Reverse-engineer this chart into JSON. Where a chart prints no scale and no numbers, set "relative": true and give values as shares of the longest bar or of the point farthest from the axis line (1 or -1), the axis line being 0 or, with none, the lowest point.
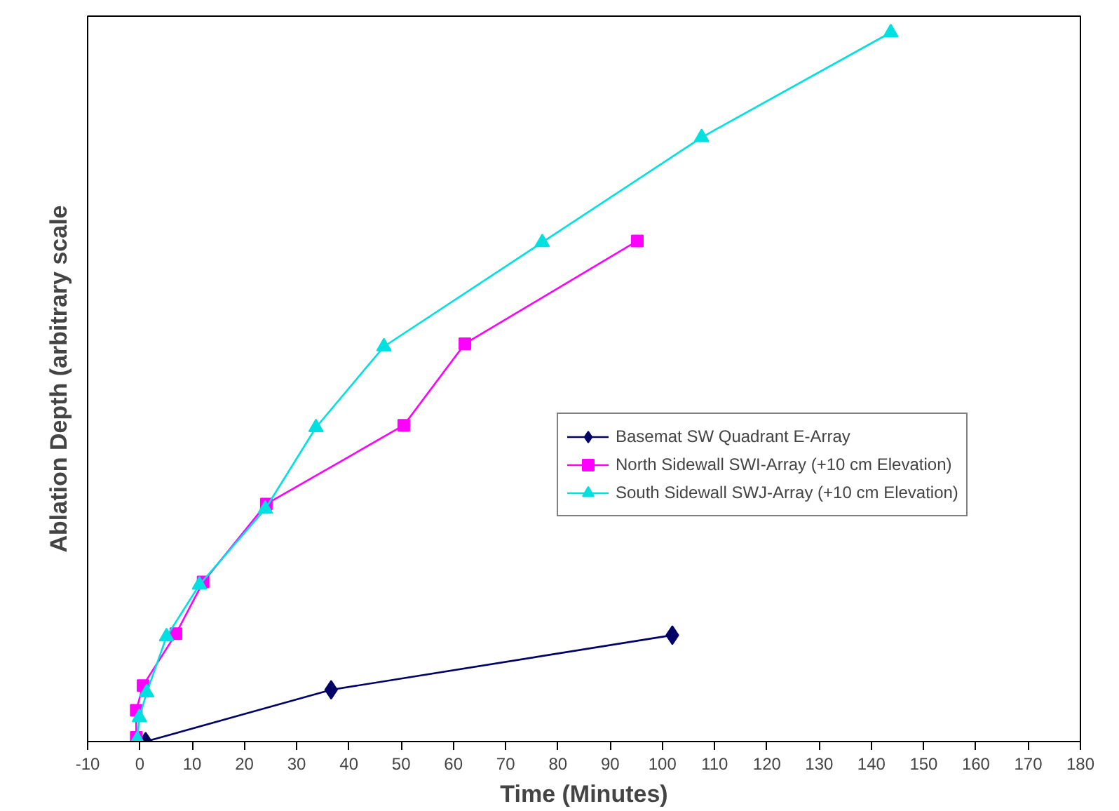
{
  "chart_data": {
    "type": "line",
    "relative": true,
    "xlabel": "Time (Minutes)",
    "ylabel": "Ablation Depth (arbitrary scale",
    "xlim": [
      -10,
      180
    ],
    "xticks": [
      -10,
      0,
      10,
      20,
      30,
      40,
      50,
      60,
      70,
      80,
      90,
      100,
      110,
      120,
      130,
      140,
      150,
      160,
      170,
      180
    ],
    "grid": false,
    "legend": "right",
    "series": [
      {
        "name": "Basemat SW Quadrant E-Array",
        "color": "#000066",
        "marker": "diamond",
        "x": [
          1.1,
          36.6,
          101.9
        ],
        "values": [
          0.0,
          0.073,
          0.15
        ]
      },
      {
        "name": "North Sidewall SWI-Array (+10 cm Elevation)",
        "color": "#ff00ff",
        "marker": "square",
        "x": [
          -0.7,
          -0.7,
          0.6,
          6.9,
          12.1,
          24.2,
          50.5,
          62.2,
          95.2
        ],
        "values": [
          0.006,
          0.044,
          0.079,
          0.152,
          0.225,
          0.335,
          0.446,
          0.561,
          0.706
        ]
      },
      {
        "name": "South Sidewall SWJ-Array (+10 cm Elevation)",
        "color": "#00e0e0",
        "marker": "triangle",
        "x": [
          -0.5,
          -0.1,
          1.3,
          5.1,
          11.4,
          24.0,
          33.7,
          46.7,
          77.0,
          107.5,
          143.7
        ],
        "values": [
          0.003,
          0.034,
          0.069,
          0.148,
          0.221,
          0.328,
          0.443,
          0.557,
          0.704,
          0.852,
          1.0
        ]
      }
    ]
  }
}
